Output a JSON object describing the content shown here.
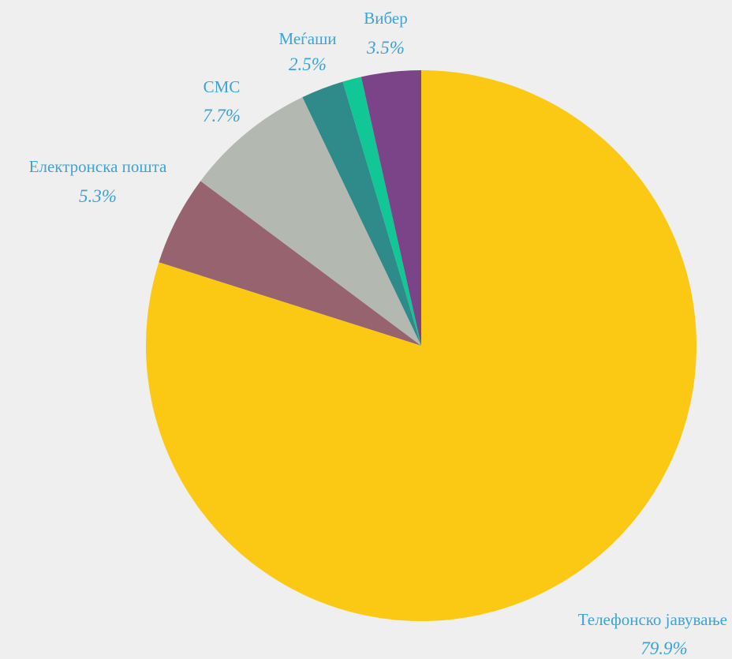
{
  "chart_data": {
    "type": "pie",
    "start_angle_deg": 0,
    "direction": "clockwise",
    "slices": [
      {
        "label": "Телефонско јавување",
        "value": 79.9,
        "display": "79.9%",
        "color": "#fbc913"
      },
      {
        "label": "Електронска пошта",
        "value": 5.3,
        "display": "5.3%",
        "color": "#97636e"
      },
      {
        "label": "СМС",
        "value": 7.7,
        "display": "7.7%",
        "color": "#b3b8b1"
      },
      {
        "label": "Меѓаши",
        "value": 2.5,
        "display": "2.5%",
        "color": "#2f8a8a"
      },
      {
        "label": "",
        "value": 1.1,
        "display": "",
        "color": "#10c795"
      },
      {
        "label": "Вибер",
        "value": 3.5,
        "display": "3.5%",
        "color": "#7b4489"
      }
    ],
    "label_color": "#3ba3d6",
    "background": "#efefef"
  }
}
